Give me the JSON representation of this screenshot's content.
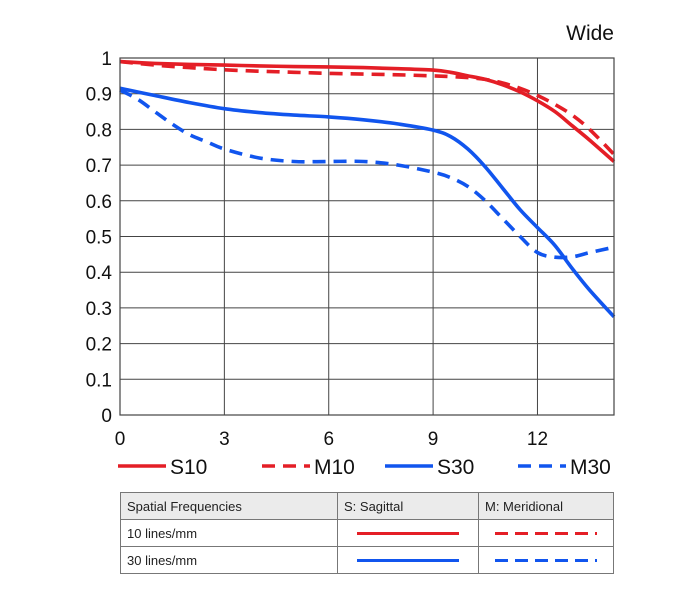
{
  "chart_data": {
    "type": "line",
    "title": "Wide",
    "xlabel": "",
    "ylabel": "",
    "xlim": [
      0,
      14.2
    ],
    "ylim": [
      0,
      1
    ],
    "xticks": [
      0,
      3,
      6,
      9,
      12
    ],
    "yticks": [
      0,
      0.1,
      0.2,
      0.3,
      0.4,
      0.5,
      0.6,
      0.7,
      0.8,
      0.9,
      1
    ],
    "xtick_labels": [
      "0",
      "3",
      "6",
      "9",
      "12"
    ],
    "ytick_labels": [
      "0",
      "0.1",
      "0.2",
      "0.3",
      "0.4",
      "0.5",
      "0.6",
      "0.7",
      "0.8",
      "0.9",
      "1"
    ],
    "grid": true,
    "legend_position": "bottom",
    "series": [
      {
        "name": "S10",
        "color": "#e41e26",
        "dash": "solid",
        "x": [
          0,
          1,
          2,
          3,
          4,
          5,
          6,
          7,
          8,
          9,
          9.5,
          10,
          10.5,
          11,
          11.5,
          12,
          12.5,
          13,
          13.5,
          14.2
        ],
        "y": [
          0.99,
          0.985,
          0.982,
          0.98,
          0.978,
          0.976,
          0.975,
          0.973,
          0.97,
          0.966,
          0.96,
          0.95,
          0.94,
          0.925,
          0.905,
          0.88,
          0.85,
          0.81,
          0.77,
          0.71
        ]
      },
      {
        "name": "M10",
        "color": "#e41e26",
        "dash": "dashed",
        "x": [
          0,
          1,
          2,
          3,
          4,
          5,
          6,
          7,
          8,
          9,
          9.5,
          10,
          10.5,
          11,
          11.5,
          12,
          12.5,
          13,
          13.5,
          14.2
        ],
        "y": [
          0.99,
          0.98,
          0.973,
          0.967,
          0.963,
          0.96,
          0.957,
          0.955,
          0.953,
          0.95,
          0.948,
          0.945,
          0.94,
          0.93,
          0.915,
          0.895,
          0.87,
          0.84,
          0.8,
          0.73
        ]
      },
      {
        "name": "S30",
        "color": "#1155ee",
        "dash": "solid",
        "x": [
          0,
          1,
          2,
          3,
          4,
          5,
          6,
          7,
          8,
          9,
          9.5,
          10,
          10.5,
          11,
          11.5,
          12,
          12.5,
          13,
          13.5,
          14.2
        ],
        "y": [
          0.915,
          0.895,
          0.875,
          0.858,
          0.847,
          0.84,
          0.835,
          0.827,
          0.815,
          0.798,
          0.78,
          0.745,
          0.695,
          0.635,
          0.575,
          0.525,
          0.475,
          0.41,
          0.35,
          0.275
        ]
      },
      {
        "name": "M30",
        "color": "#1155ee",
        "dash": "dashed",
        "x": [
          0,
          0.5,
          1,
          1.5,
          2,
          2.5,
          3,
          4,
          5,
          6,
          7,
          8,
          9,
          9.5,
          10,
          10.5,
          11,
          11.5,
          12,
          12.5,
          13,
          13.5,
          14.2
        ],
        "y": [
          0.91,
          0.885,
          0.85,
          0.815,
          0.785,
          0.765,
          0.745,
          0.72,
          0.71,
          0.71,
          0.71,
          0.7,
          0.68,
          0.665,
          0.64,
          0.6,
          0.55,
          0.5,
          0.455,
          0.442,
          0.443,
          0.455,
          0.47
        ]
      }
    ]
  },
  "table": {
    "headers": [
      "Spatial Frequencies",
      "S: Sagittal",
      "M: Meridional"
    ],
    "rows": [
      {
        "label": "10 lines/mm",
        "sagittal_color": "#e41e26",
        "meridional_color": "#e41e26"
      },
      {
        "label": "30 lines/mm",
        "sagittal_color": "#1155ee",
        "meridional_color": "#1155ee"
      }
    ]
  }
}
